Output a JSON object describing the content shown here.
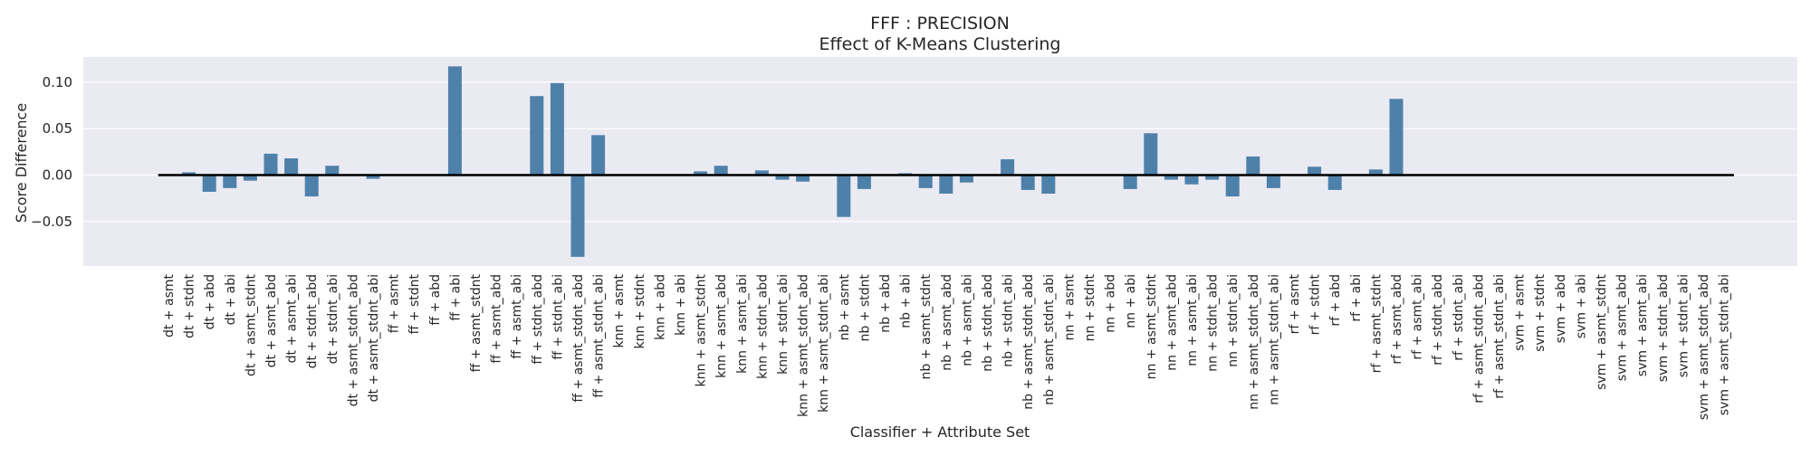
{
  "chart_data": {
    "type": "bar",
    "title": "FFF : PRECISION",
    "subtitle": "Effect of K-Means Clustering",
    "xlabel": "Classifier + Attribute Set",
    "ylabel": "Score Difference",
    "ylim": [
      -0.09,
      0.12
    ],
    "yticks": [
      -0.05,
      0.0,
      0.05,
      0.1
    ],
    "ytick_labels": [
      "−0.05",
      "0.00",
      "0.05",
      "0.10"
    ],
    "grid": true,
    "legend": "none",
    "colors": {
      "bar": "#4e81aa",
      "background": "#eaeaf2",
      "grid": "#ffffff",
      "zero_line": "#000000"
    },
    "categories": [
      "dt + asmt",
      "dt + stdnt",
      "dt + abd",
      "dt + abi",
      "dt + asmt_stdnt",
      "dt + asmt_abd",
      "dt + asmt_abi",
      "dt + stdnt_abd",
      "dt + stdnt_abi",
      "dt + asmt_stdnt_abd",
      "dt + asmt_stdnt_abi",
      "ff + asmt",
      "ff + stdnt",
      "ff + abd",
      "ff + abi",
      "ff + asmt_stdnt",
      "ff + asmt_abd",
      "ff + asmt_abi",
      "ff + stdnt_abd",
      "ff + stdnt_abi",
      "ff + asmt_stdnt_abd",
      "ff + asmt_stdnt_abi",
      "knn + asmt",
      "knn + stdnt",
      "knn + abd",
      "knn + abi",
      "knn + asmt_stdnt",
      "knn + asmt_abd",
      "knn + asmt_abi",
      "knn + stdnt_abd",
      "knn + stdnt_abi",
      "knn + asmt_stdnt_abd",
      "knn + asmt_stdnt_abi",
      "nb + asmt",
      "nb + stdnt",
      "nb + abd",
      "nb + abi",
      "nb + asmt_stdnt",
      "nb + asmt_abd",
      "nb + asmt_abi",
      "nb + stdnt_abd",
      "nb + stdnt_abi",
      "nb + asmt_stdnt_abd",
      "nb + asmt_stdnt_abi",
      "nn + asmt",
      "nn + stdnt",
      "nn + abd",
      "nn + abi",
      "nn + asmt_stdnt",
      "nn + asmt_abd",
      "nn + asmt_abi",
      "nn + stdnt_abd",
      "nn + stdnt_abi",
      "nn + asmt_stdnt_abd",
      "nn + asmt_stdnt_abi",
      "rf + asmt",
      "rf + stdnt",
      "rf + abd",
      "rf + abi",
      "rf + asmt_stdnt",
      "rf + asmt_abd",
      "rf + asmt_abi",
      "rf + stdnt_abd",
      "rf + stdnt_abi",
      "rf + asmt_stdnt_abd",
      "rf + asmt_stdnt_abi",
      "svm + asmt",
      "svm + stdnt",
      "svm + abd",
      "svm + abi",
      "svm + asmt_stdnt",
      "svm + asmt_abd",
      "svm + asmt_abi",
      "svm + stdnt_abd",
      "svm + stdnt_abi",
      "svm + asmt_stdnt_abd",
      "svm + asmt_stdnt_abi"
    ],
    "values": [
      0.0,
      0.003,
      -0.018,
      -0.014,
      -0.006,
      0.023,
      0.018,
      -0.023,
      0.01,
      0.0,
      -0.004,
      0.0,
      0.0,
      0.0,
      0.117,
      0.0,
      0.0,
      0.0,
      0.085,
      0.099,
      -0.088,
      0.043,
      0.0,
      0.0,
      0.0,
      0.0,
      0.004,
      0.01,
      0.0,
      0.005,
      -0.005,
      -0.007,
      0.0,
      -0.045,
      -0.015,
      0.0,
      0.002,
      -0.014,
      -0.02,
      -0.008,
      0.0,
      0.017,
      -0.016,
      -0.02,
      0.0,
      0.0,
      0.0,
      -0.015,
      0.045,
      -0.005,
      -0.01,
      -0.005,
      -0.023,
      0.02,
      -0.014,
      0.0,
      0.009,
      -0.016,
      0.0,
      0.006,
      0.082,
      0.0,
      0.0,
      0.0,
      0.0,
      0.0,
      0.0,
      0.0,
      0.0,
      0.0,
      0.0,
      0.0,
      0.0,
      0.0,
      0.0,
      0.0,
      0.0
    ]
  }
}
